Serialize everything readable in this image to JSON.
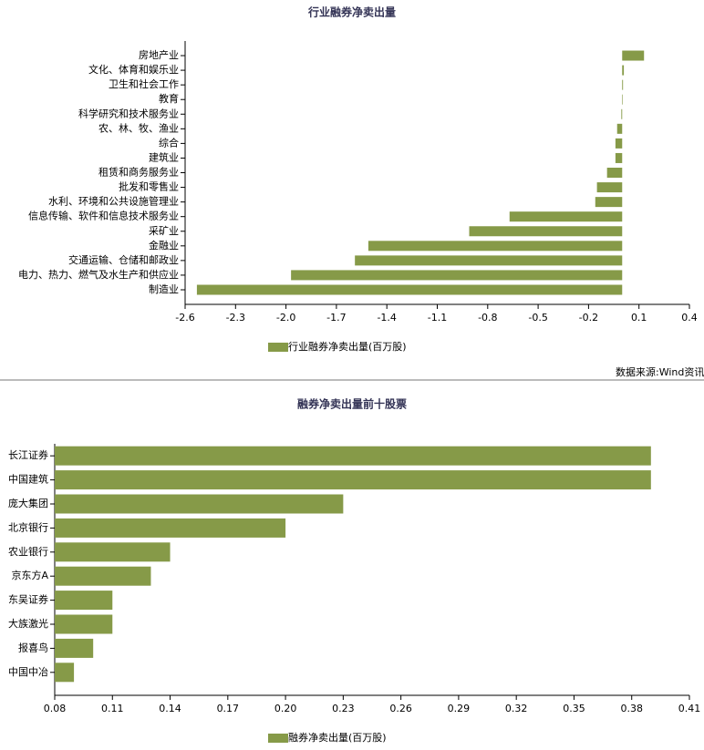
{
  "chart_data": [
    {
      "type": "bar",
      "orientation": "horizontal",
      "title": "行业融券净卖出量",
      "categories": [
        "房地产业",
        "文化、体育和娱乐业",
        "卫生和社会工作",
        "教育",
        "科学研究和技术服务业",
        "农、林、牧、渔业",
        "综合",
        "建筑业",
        "租赁和商务服务业",
        "批发和零售业",
        "水利、环境和公共设施管理业",
        "信息传输、软件和信息技术服务业",
        "采矿业",
        "金融业",
        "交通运输、仓储和邮政业",
        "电力、热力、燃气及水生产和供应业",
        "制造业"
      ],
      "series": [
        {
          "name": "行业融券净卖出量(百万股)",
          "color": "#869a48",
          "values": [
            0.13,
            0.01,
            0.005,
            0.003,
            -0.005,
            -0.03,
            -0.04,
            -0.04,
            -0.09,
            -0.15,
            -0.16,
            -0.67,
            -0.91,
            -1.51,
            -1.59,
            -1.97,
            -2.53
          ]
        }
      ],
      "xlim": [
        -2.6,
        0.4
      ],
      "xticks": [
        -2.6,
        -2.3,
        {
          "value": -2.0,
          "label": "-2.0"
        },
        -1.7,
        -1.4,
        -1.1,
        -0.8,
        -0.5,
        -0.2,
        0.1,
        0.4
      ],
      "source": "数据来源:Wind资讯"
    },
    {
      "type": "bar",
      "orientation": "horizontal",
      "title": "融券净卖出量前十股票",
      "categories": [
        "长江证券",
        "中国建筑",
        "庞大集团",
        "北京银行",
        "农业银行",
        "京东方A",
        "东吴证券",
        "大族激光",
        "报喜鸟",
        "中国中冶"
      ],
      "series": [
        {
          "name": "融券净卖出量(百万股)",
          "color": "#869a48",
          "values": [
            0.39,
            0.39,
            0.23,
            0.2,
            0.14,
            0.13,
            0.11,
            0.11,
            0.1,
            0.09
          ]
        }
      ],
      "xlim": [
        0.08,
        0.41
      ],
      "xticks": [
        0.08,
        0.11,
        0.14,
        0.17,
        {
          "value": 0.2,
          "label": "0.20"
        },
        0.23,
        0.26,
        0.29,
        0.32,
        0.35,
        0.38,
        0.41
      ]
    }
  ]
}
